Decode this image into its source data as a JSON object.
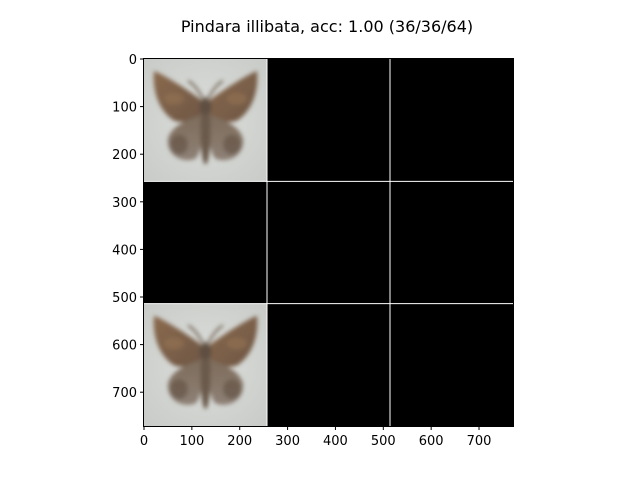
{
  "figure": {
    "title": "Pindara illibata, acc: 1.00 (36/36/64)"
  },
  "axes": {
    "x_ticks": [
      "0",
      "100",
      "200",
      "300",
      "400",
      "500",
      "600",
      "700"
    ],
    "y_ticks": [
      "0",
      "100",
      "200",
      "300",
      "400",
      "500",
      "600",
      "700"
    ],
    "xlim": [
      0,
      771
    ],
    "ylim": [
      771,
      0
    ]
  },
  "grid": {
    "rows": 3,
    "cols": 3,
    "tile_size": 257,
    "separator_color": "#ffffff",
    "empty_tile_color": "#000000",
    "tiles": [
      {
        "row": 0,
        "col": 0,
        "content": "moth-image"
      },
      {
        "row": 0,
        "col": 1,
        "content": "empty"
      },
      {
        "row": 0,
        "col": 2,
        "content": "empty"
      },
      {
        "row": 1,
        "col": 0,
        "content": "empty"
      },
      {
        "row": 1,
        "col": 1,
        "content": "empty"
      },
      {
        "row": 1,
        "col": 2,
        "content": "empty"
      },
      {
        "row": 2,
        "col": 0,
        "content": "moth-image"
      },
      {
        "row": 2,
        "col": 1,
        "content": "empty"
      },
      {
        "row": 2,
        "col": 2,
        "content": "empty"
      }
    ]
  },
  "colors": {
    "image_background": "#d6d8d4",
    "moth_wing": "#7a5e45",
    "moth_wing_dark": "#5b4a3c",
    "moth_body": "#6a5a4c"
  }
}
